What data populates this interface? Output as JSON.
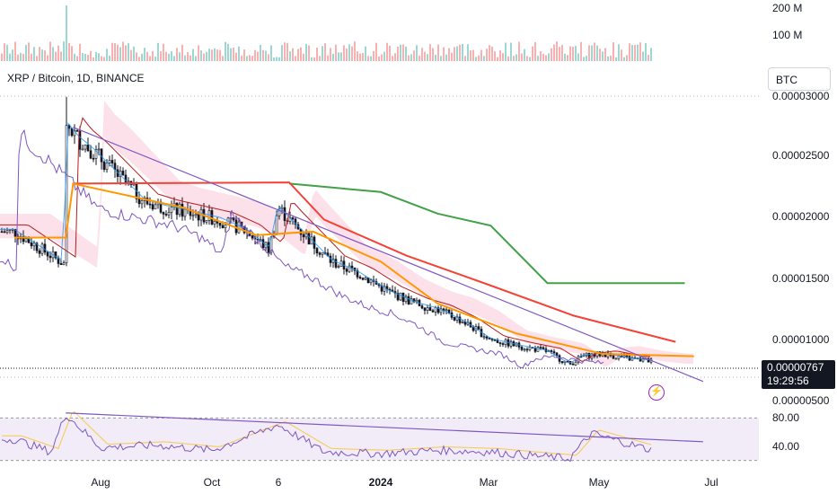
{
  "header": {
    "symbol": "XRP / Bitcoin, 1D, BINANCE",
    "currency": "BTC"
  },
  "last_price": {
    "value": "0.00000767",
    "countdown": "19:29:56"
  },
  "icons": {
    "flash": "lightning-bolt-icon"
  },
  "colors": {
    "up": "#26a69a",
    "down": "#ef5350",
    "trendline": "#7e57c2",
    "rsi": "#7e57c2",
    "rsi_ma": "#f7c948",
    "ichimoku_conversion": "#2196f3",
    "ichimoku_base": "#b71c1c",
    "lagging": "#7e57c2",
    "cloud_bull": "#a5d6a7",
    "cloud_bear": "#f8bbd0",
    "long_red": "#f44336",
    "long_green": "#43a047",
    "long_orange": "#ff9800"
  },
  "chart_data": [
    {
      "type": "bar",
      "name": "volume",
      "y_ticks": [
        "200 M",
        "100 M"
      ],
      "ylim": [
        0,
        250000000
      ]
    },
    {
      "type": "candlestick",
      "title": "XRP / Bitcoin, 1D, BINANCE",
      "ylabel": "BTC",
      "y_ticks": [
        "0.00003000",
        "0.00002500",
        "0.00002000",
        "0.00001500",
        "0.00001000",
        "0.00000500"
      ],
      "ylim": [
        4.4e-06,
        3.01e-05
      ],
      "x_ticks": [
        "Aug",
        "Oct",
        "6",
        "2024",
        "Mar",
        "May",
        "Jul"
      ],
      "close_path": [
        {
          "x": "2023-06-15",
          "y": 1.85e-05
        },
        {
          "x": "2023-06-25",
          "y": 1.75e-05
        },
        {
          "x": "2023-07-05",
          "y": 1.65e-05
        },
        {
          "x": "2023-07-12",
          "y": 1.58e-05
        },
        {
          "x": "2023-07-13",
          "y": 2.75e-05
        },
        {
          "x": "2023-07-20",
          "y": 2.62e-05
        },
        {
          "x": "2023-07-28",
          "y": 2.52e-05
        },
        {
          "x": "2023-08-05",
          "y": 2.4e-05
        },
        {
          "x": "2023-08-15",
          "y": 2.25e-05
        },
        {
          "x": "2023-08-25",
          "y": 2.1e-05
        },
        {
          "x": "2023-09-05",
          "y": 2.05e-05
        },
        {
          "x": "2023-09-20",
          "y": 2e-05
        },
        {
          "x": "2023-10-05",
          "y": 1.95e-05
        },
        {
          "x": "2023-10-20",
          "y": 1.85e-05
        },
        {
          "x": "2023-11-01",
          "y": 1.7e-05
        },
        {
          "x": "2023-11-06",
          "y": 2.05e-05
        },
        {
          "x": "2023-11-12",
          "y": 1.95e-05
        },
        {
          "x": "2023-11-22",
          "y": 1.8e-05
        },
        {
          "x": "2023-12-05",
          "y": 1.6e-05
        },
        {
          "x": "2023-12-20",
          "y": 1.5e-05
        },
        {
          "x": "2024-01-05",
          "y": 1.35e-05
        },
        {
          "x": "2024-01-20",
          "y": 1.25e-05
        },
        {
          "x": "2024-02-01",
          "y": 1.2e-05
        },
        {
          "x": "2024-02-15",
          "y": 1.1e-05
        },
        {
          "x": "2024-03-01",
          "y": 9.5e-06
        },
        {
          "x": "2024-03-15",
          "y": 9e-06
        },
        {
          "x": "2024-04-01",
          "y": 8.5e-06
        },
        {
          "x": "2024-04-13",
          "y": 7.4e-06
        },
        {
          "x": "2024-04-20",
          "y": 8.1e-06
        },
        {
          "x": "2024-05-01",
          "y": 8.3e-06
        },
        {
          "x": "2024-05-15",
          "y": 7.9e-06
        },
        {
          "x": "2024-05-28",
          "y": 7.7e-06
        }
      ],
      "trendline": [
        {
          "x": "2023-07-17",
          "y": 2.72e-05
        },
        {
          "x": "2024-06-25",
          "y": 6e-06
        }
      ],
      "long_lines": [
        {
          "name": "green",
          "points": [
            {
              "x": "2023-11-12",
              "y": 2.25e-05
            },
            {
              "x": "2024-01-01",
              "y": 2.18e-05
            },
            {
              "x": "2024-02-01",
              "y": 2e-05
            },
            {
              "x": "2024-03-01",
              "y": 1.9e-05
            },
            {
              "x": "2024-04-01",
              "y": 1.42e-05
            },
            {
              "x": "2024-06-15",
              "y": 1.42e-05
            }
          ]
        },
        {
          "name": "red",
          "points": [
            {
              "x": "2023-07-17",
              "y": 2.25e-05
            },
            {
              "x": "2023-11-12",
              "y": 2.26e-05
            },
            {
              "x": "2023-12-01",
              "y": 1.95e-05
            },
            {
              "x": "2024-01-15",
              "y": 1.65e-05
            },
            {
              "x": "2024-03-01",
              "y": 1.4e-05
            },
            {
              "x": "2024-04-15",
              "y": 1.15e-05
            },
            {
              "x": "2024-06-10",
              "y": 9.3e-06
            }
          ]
        },
        {
          "name": "orange",
          "points": [
            {
              "x": "2023-06-15",
              "y": 1.8e-05
            },
            {
              "x": "2023-07-13",
              "y": 1.8e-05
            },
            {
              "x": "2023-07-17",
              "y": 2.25e-05
            },
            {
              "x": "2023-09-15",
              "y": 2.05e-05
            },
            {
              "x": "2023-10-25",
              "y": 1.82e-05
            },
            {
              "x": "2023-11-25",
              "y": 1.85e-05
            },
            {
              "x": "2024-01-01",
              "y": 1.6e-05
            },
            {
              "x": "2024-02-01",
              "y": 1.25e-05
            },
            {
              "x": "2024-03-15",
              "y": 1e-05
            },
            {
              "x": "2024-05-01",
              "y": 8.3e-06
            },
            {
              "x": "2024-06-20",
              "y": 8.1e-06
            }
          ]
        }
      ]
    },
    {
      "type": "line",
      "name": "RSI",
      "y_ticks": [
        "80.00",
        "40.00"
      ],
      "ylim": [
        20,
        90
      ],
      "bands": [
        30,
        80
      ],
      "values_path": [
        {
          "x": "2023-06-15",
          "y": 55
        },
        {
          "x": "2023-07-05",
          "y": 40
        },
        {
          "x": "2023-07-13",
          "y": 85
        },
        {
          "x": "2023-08-01",
          "y": 45
        },
        {
          "x": "2023-09-01",
          "y": 48
        },
        {
          "x": "2023-10-01",
          "y": 42
        },
        {
          "x": "2023-11-06",
          "y": 72
        },
        {
          "x": "2023-12-01",
          "y": 40
        },
        {
          "x": "2024-01-01",
          "y": 38
        },
        {
          "x": "2024-02-01",
          "y": 42
        },
        {
          "x": "2024-03-01",
          "y": 40
        },
        {
          "x": "2024-04-13",
          "y": 32
        },
        {
          "x": "2024-04-25",
          "y": 62
        },
        {
          "x": "2024-05-28",
          "y": 42
        }
      ],
      "trendline": [
        {
          "x": "2023-07-13",
          "y": 86
        },
        {
          "x": "2024-06-25",
          "y": 52
        }
      ]
    }
  ]
}
